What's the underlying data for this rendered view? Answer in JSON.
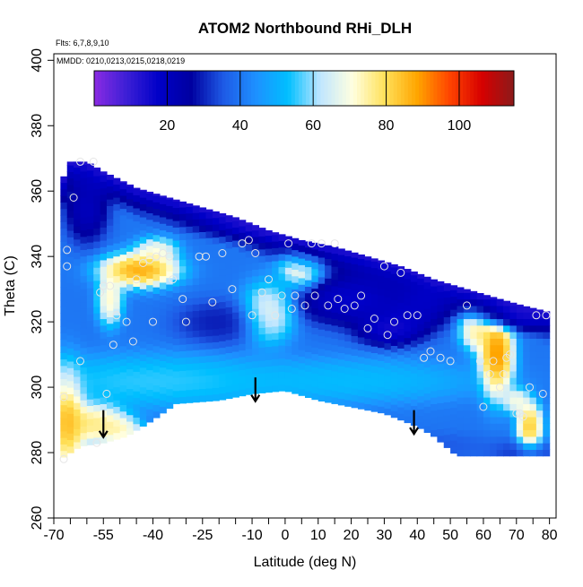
{
  "chart_data": {
    "type": "heatmap",
    "title": "ATOM2 Northbound RHi_DLH",
    "subtitle_flights": "Flts: 6,7,8,9,10",
    "subtitle_dates": "MMDD: 0210,0213,0215,0218,0219",
    "xlabel": "Latitude (deg N)",
    "ylabel": "Theta (C)",
    "xlim": [
      -70,
      82
    ],
    "ylim": [
      260,
      402
    ],
    "x_ticks": [
      -70,
      -55,
      -40,
      -25,
      -10,
      0,
      10,
      20,
      30,
      40,
      50,
      60,
      70,
      80
    ],
    "x_tick_labels": [
      "-70",
      "-55",
      "-40",
      "-25",
      "-10",
      "0",
      "10",
      "20",
      "30",
      "40",
      "50",
      "60",
      "70",
      "80"
    ],
    "x_minor_ticks": [
      -65,
      -60,
      -50,
      -45,
      -35,
      -30,
      -20,
      -15,
      -5,
      5,
      15,
      25,
      35,
      45,
      55,
      65,
      75
    ],
    "y_ticks": [
      260,
      280,
      300,
      320,
      340,
      360,
      380,
      400
    ],
    "y_tick_labels": [
      "260",
      "280",
      "300",
      "320",
      "340",
      "360",
      "380",
      "400"
    ],
    "colorbar": {
      "min": 0,
      "max": 115,
      "ticks": [
        20,
        40,
        60,
        80,
        100
      ],
      "tick_labels": [
        "20",
        "40",
        "60",
        "80",
        "100"
      ],
      "colors": [
        "#8a2be2",
        "#3c1fd6",
        "#0000c8",
        "#0000a0",
        "#1e5ae6",
        "#1e90ff",
        "#00bfff",
        "#c0e6ff",
        "#ffffe0",
        "#ffe15a",
        "#ffa500",
        "#ff4500",
        "#d70000",
        "#8b1a1a"
      ]
    },
    "domain_upper": [
      [
        -68,
        360
      ],
      [
        -66,
        369
      ],
      [
        -60,
        369
      ],
      [
        -55,
        366
      ],
      [
        -45,
        361
      ],
      [
        -35,
        358
      ],
      [
        -25,
        355
      ],
      [
        -15,
        352
      ],
      [
        -5,
        348
      ],
      [
        5,
        345
      ],
      [
        15,
        343
      ],
      [
        25,
        340
      ],
      [
        35,
        337
      ],
      [
        45,
        333
      ],
      [
        55,
        330
      ],
      [
        65,
        327
      ],
      [
        72,
        325
      ],
      [
        80,
        323
      ]
    ],
    "domain_lower": [
      [
        -68,
        278
      ],
      [
        -62,
        282
      ],
      [
        -55,
        283
      ],
      [
        -48,
        285
      ],
      [
        -40,
        290
      ],
      [
        -33,
        295
      ],
      [
        -20,
        296
      ],
      [
        -10,
        298
      ],
      [
        0,
        299
      ],
      [
        10,
        296
      ],
      [
        20,
        294
      ],
      [
        30,
        292
      ],
      [
        40,
        288
      ],
      [
        45,
        285
      ],
      [
        52,
        279
      ],
      [
        60,
        279
      ],
      [
        70,
        279
      ],
      [
        80,
        279
      ]
    ],
    "blobs": [
      {
        "x": -66,
        "y": 290,
        "rx": 4,
        "ry": 12,
        "value": 98
      },
      {
        "x": -58,
        "y": 289,
        "rx": 8,
        "ry": 5,
        "value": 88
      },
      {
        "x": -50,
        "y": 287,
        "rx": 5,
        "ry": 3,
        "value": 80
      },
      {
        "x": -44,
        "y": 336,
        "rx": 9,
        "ry": 4,
        "value": 102
      },
      {
        "x": -53,
        "y": 327,
        "rx": 3,
        "ry": 6,
        "value": 82
      },
      {
        "x": -39,
        "y": 342,
        "rx": 5,
        "ry": 3,
        "value": 78
      },
      {
        "x": 5,
        "y": 337,
        "rx": 5,
        "ry": 5,
        "value": 80
      },
      {
        "x": -5,
        "y": 323,
        "rx": 6,
        "ry": 7,
        "value": 76
      },
      {
        "x": 64,
        "y": 310,
        "rx": 4,
        "ry": 10,
        "value": 106
      },
      {
        "x": 58,
        "y": 318,
        "rx": 4,
        "ry": 5,
        "value": 86
      },
      {
        "x": 74,
        "y": 288,
        "rx": 3,
        "ry": 6,
        "value": 96
      },
      {
        "x": 70,
        "y": 296,
        "rx": 3,
        "ry": 3,
        "value": 78
      },
      {
        "x": -40,
        "y": 302,
        "rx": 30,
        "ry": 6,
        "value": 60
      },
      {
        "x": 20,
        "y": 302,
        "rx": 30,
        "ry": 5,
        "value": 56
      },
      {
        "x": 20,
        "y": 327,
        "rx": 13,
        "ry": 6,
        "value": 10
      },
      {
        "x": 3,
        "y": 350,
        "rx": 18,
        "ry": 3,
        "value": 14
      },
      {
        "x": -60,
        "y": 355,
        "rx": 5,
        "ry": 8,
        "value": 14
      },
      {
        "x": 68,
        "y": 322,
        "rx": 9,
        "ry": 3,
        "value": 16
      },
      {
        "x": 32,
        "y": 318,
        "rx": 8,
        "ry": 4,
        "value": 8
      },
      {
        "x": 40,
        "y": 324,
        "rx": 8,
        "ry": 5,
        "value": 12
      },
      {
        "x": -20,
        "y": 320,
        "rx": 10,
        "ry": 5,
        "value": 26
      },
      {
        "x": 45,
        "y": 282,
        "rx": 12,
        "ry": 3,
        "value": 34
      },
      {
        "x": 72,
        "y": 280,
        "rx": 8,
        "ry": 3,
        "value": 30
      }
    ],
    "background_value": 40,
    "points": [
      [
        -66,
        342
      ],
      [
        -66,
        337
      ],
      [
        -64,
        358
      ],
      [
        -62,
        369
      ],
      [
        -58,
        369
      ],
      [
        -56,
        329
      ],
      [
        -55,
        331
      ],
      [
        -53,
        331
      ],
      [
        -51,
        322
      ],
      [
        -45,
        333
      ],
      [
        -43,
        338
      ],
      [
        -41,
        339
      ],
      [
        -39,
        340
      ],
      [
        -37,
        341
      ],
      [
        -35,
        340
      ],
      [
        -31,
        327
      ],
      [
        -26,
        340
      ],
      [
        -24,
        340
      ],
      [
        -22,
        326
      ],
      [
        -19,
        341
      ],
      [
        -16,
        330
      ],
      [
        -13,
        344
      ],
      [
        -11,
        345
      ],
      [
        -9,
        341
      ],
      [
        -7,
        329
      ],
      [
        -5,
        333
      ],
      [
        -3,
        322
      ],
      [
        -1,
        328
      ],
      [
        1,
        344
      ],
      [
        2,
        324
      ],
      [
        3,
        328
      ],
      [
        6,
        325
      ],
      [
        8,
        344
      ],
      [
        9,
        328
      ],
      [
        11,
        344
      ],
      [
        13,
        325
      ],
      [
        15,
        344
      ],
      [
        16,
        327
      ],
      [
        18,
        324
      ],
      [
        21,
        325
      ],
      [
        23,
        328
      ],
      [
        25,
        318
      ],
      [
        27,
        321
      ],
      [
        30,
        337
      ],
      [
        31,
        316
      ],
      [
        33,
        320
      ],
      [
        35,
        335
      ],
      [
        37,
        322
      ],
      [
        40,
        322
      ],
      [
        42,
        309
      ],
      [
        44,
        311
      ],
      [
        47,
        309
      ],
      [
        50,
        308
      ],
      [
        55,
        325
      ],
      [
        59,
        308
      ],
      [
        62,
        304
      ],
      [
        63,
        308
      ],
      [
        66,
        304
      ],
      [
        67,
        309
      ],
      [
        68,
        310
      ],
      [
        70,
        292
      ],
      [
        72,
        291
      ],
      [
        74,
        300
      ],
      [
        76,
        322
      ],
      [
        78,
        298
      ],
      [
        79,
        322
      ],
      [
        -67,
        278
      ],
      [
        -67,
        297
      ],
      [
        -62,
        308
      ],
      [
        -57,
        283
      ],
      [
        -54,
        298
      ],
      [
        -52,
        313
      ],
      [
        -48,
        320
      ],
      [
        -46,
        314
      ],
      [
        -40,
        320
      ],
      [
        -34,
        333
      ],
      [
        -30,
        320
      ],
      [
        -10,
        322
      ],
      [
        60,
        294
      ],
      [
        65,
        300
      ],
      [
        71,
        292
      ]
    ],
    "arrows": [
      {
        "x": -55,
        "y_top": 293,
        "y_bottom": 285
      },
      {
        "x": -9,
        "y_top": 303,
        "y_bottom": 296
      },
      {
        "x": 39,
        "y_top": 293,
        "y_bottom": 286
      }
    ]
  }
}
